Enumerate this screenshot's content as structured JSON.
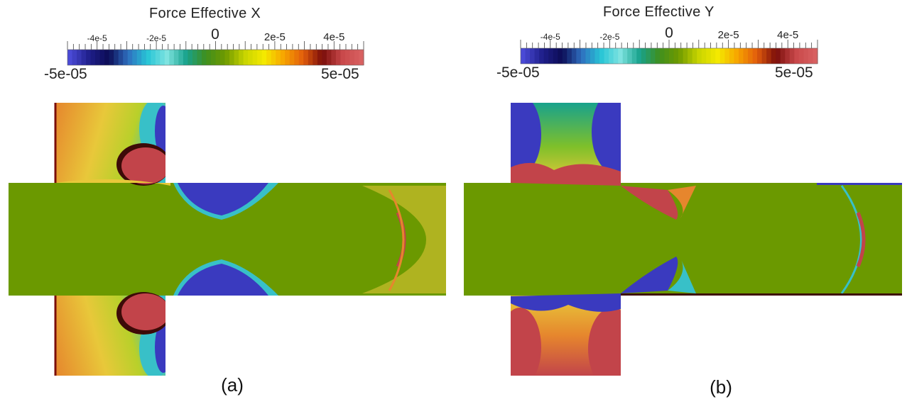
{
  "colormap": [
    "#4a4ad6",
    "#1f1f8a",
    "#0c0c55",
    "#2f6fbf",
    "#27c5d6",
    "#7fe3e0",
    "#18a28c",
    "#3f8f1e",
    "#6f9a00",
    "#c8d400",
    "#f4e900",
    "#f7a500",
    "#e25d0c",
    "#7a0d0a",
    "#c8484a",
    "#d86060"
  ],
  "field_colors": {
    "green": "#6b9900",
    "red": "#c2444a",
    "blue": "#3a3abf",
    "yellow": "#e8c83a",
    "orange": "#e6862d",
    "cyan": "#38c0c8",
    "dark": "#3d0b08"
  },
  "panels": [
    {
      "id": "a",
      "title": "Force Effective X",
      "ticks": [
        {
          "label": "-4e-5",
          "value": -4e-05
        },
        {
          "label": "-2e-5",
          "value": -2e-05
        },
        {
          "label": "2e-5",
          "value": 2e-05
        },
        {
          "label": "4e-5",
          "value": 4e-05
        }
      ],
      "zero_label": "0",
      "min_label": "-5e-05",
      "max_label": "5e-05",
      "range": [
        -5e-05,
        5e-05
      ],
      "caption": "(a)"
    },
    {
      "id": "b",
      "title": "Force Effective Y",
      "ticks": [
        {
          "label": "-4e-5",
          "value": -4e-05
        },
        {
          "label": "-2e-5",
          "value": -2e-05
        },
        {
          "label": "2e-5",
          "value": 2e-05
        },
        {
          "label": "4e-5",
          "value": 4e-05
        }
      ],
      "zero_label": "0",
      "min_label": "-5e-05",
      "max_label": "5e-05",
      "range": [
        -5e-05,
        5e-05
      ],
      "caption": "(b)"
    }
  ]
}
